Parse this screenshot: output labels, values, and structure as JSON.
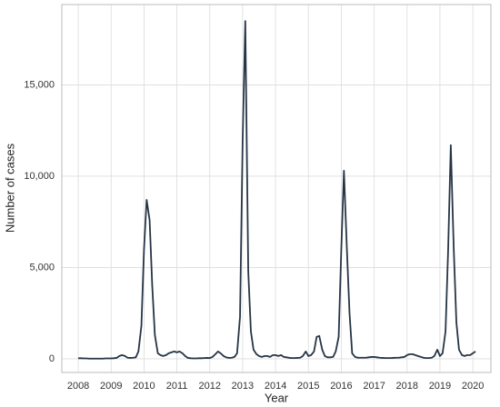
{
  "chart_data": {
    "type": "line",
    "x_label": "Year",
    "y_label": "Number of cases",
    "x": [
      2008.0,
      2008.08,
      2008.17,
      2008.25,
      2008.33,
      2008.42,
      2008.5,
      2008.58,
      2008.67,
      2008.75,
      2008.83,
      2008.92,
      2009.0,
      2009.08,
      2009.17,
      2009.25,
      2009.33,
      2009.42,
      2009.5,
      2009.58,
      2009.67,
      2009.75,
      2009.83,
      2009.92,
      2010.0,
      2010.08,
      2010.17,
      2010.25,
      2010.33,
      2010.42,
      2010.5,
      2010.58,
      2010.67,
      2010.75,
      2010.83,
      2010.92,
      2011.0,
      2011.08,
      2011.17,
      2011.25,
      2011.33,
      2011.42,
      2011.5,
      2011.58,
      2011.67,
      2011.75,
      2011.83,
      2011.92,
      2012.0,
      2012.08,
      2012.17,
      2012.25,
      2012.33,
      2012.42,
      2012.5,
      2012.58,
      2012.67,
      2012.75,
      2012.83,
      2012.92,
      2013.0,
      2013.08,
      2013.17,
      2013.25,
      2013.33,
      2013.42,
      2013.5,
      2013.58,
      2013.67,
      2013.75,
      2013.83,
      2013.92,
      2014.0,
      2014.08,
      2014.17,
      2014.25,
      2014.33,
      2014.42,
      2014.5,
      2014.58,
      2014.67,
      2014.75,
      2014.83,
      2014.92,
      2015.0,
      2015.08,
      2015.17,
      2015.25,
      2015.33,
      2015.42,
      2015.5,
      2015.58,
      2015.67,
      2015.75,
      2015.83,
      2015.92,
      2016.0,
      2016.08,
      2016.17,
      2016.25,
      2016.33,
      2016.42,
      2016.5,
      2016.58,
      2016.67,
      2016.75,
      2016.83,
      2016.92,
      2017.0,
      2017.08,
      2017.17,
      2017.25,
      2017.33,
      2017.42,
      2017.5,
      2017.58,
      2017.67,
      2017.75,
      2017.83,
      2017.92,
      2018.0,
      2018.08,
      2018.17,
      2018.25,
      2018.33,
      2018.42,
      2018.5,
      2018.58,
      2018.67,
      2018.75,
      2018.83,
      2018.92,
      2019.0,
      2019.08,
      2019.17,
      2019.25,
      2019.33,
      2019.42,
      2019.5,
      2019.58,
      2019.67,
      2019.75,
      2019.83,
      2019.92,
      2020.0,
      2020.08
    ],
    "series": [
      {
        "name": "Cases",
        "color": "#263545",
        "values": [
          30,
          30,
          20,
          20,
          10,
          10,
          10,
          10,
          10,
          10,
          20,
          20,
          20,
          30,
          50,
          150,
          200,
          150,
          60,
          50,
          60,
          80,
          400,
          1800,
          6000,
          8700,
          7600,
          4000,
          1300,
          300,
          200,
          150,
          200,
          300,
          350,
          400,
          350,
          400,
          300,
          150,
          50,
          30,
          20,
          20,
          30,
          30,
          40,
          50,
          40,
          100,
          250,
          400,
          300,
          150,
          80,
          50,
          60,
          100,
          300,
          2300,
          12000,
          18500,
          4800,
          1500,
          500,
          250,
          150,
          100,
          150,
          150,
          100,
          200,
          200,
          150,
          200,
          100,
          80,
          50,
          40,
          40,
          50,
          60,
          150,
          400,
          150,
          200,
          400,
          1200,
          1250,
          500,
          150,
          80,
          80,
          100,
          400,
          1200,
          6000,
          10300,
          6000,
          2500,
          300,
          100,
          60,
          60,
          60,
          60,
          80,
          100,
          100,
          80,
          60,
          50,
          40,
          40,
          40,
          50,
          60,
          60,
          80,
          100,
          200,
          250,
          250,
          200,
          150,
          100,
          60,
          40,
          40,
          60,
          150,
          500,
          150,
          300,
          1500,
          6000,
          11700,
          6000,
          2000,
          500,
          200,
          150,
          200,
          200,
          300,
          400
        ]
      }
    ],
    "xlim": [
      2007.5,
      2020.55
    ],
    "xticks": [
      2008,
      2009,
      2010,
      2011,
      2012,
      2013,
      2014,
      2015,
      2016,
      2017,
      2018,
      2019,
      2020
    ],
    "ylim": [
      -750,
      19400
    ],
    "yticks": [
      0,
      {
        "value": 5000,
        "label": "5,000"
      },
      {
        "value": 10000,
        "label": "10,000"
      },
      {
        "value": 15000,
        "label": "15,000"
      }
    ],
    "grid": true
  }
}
